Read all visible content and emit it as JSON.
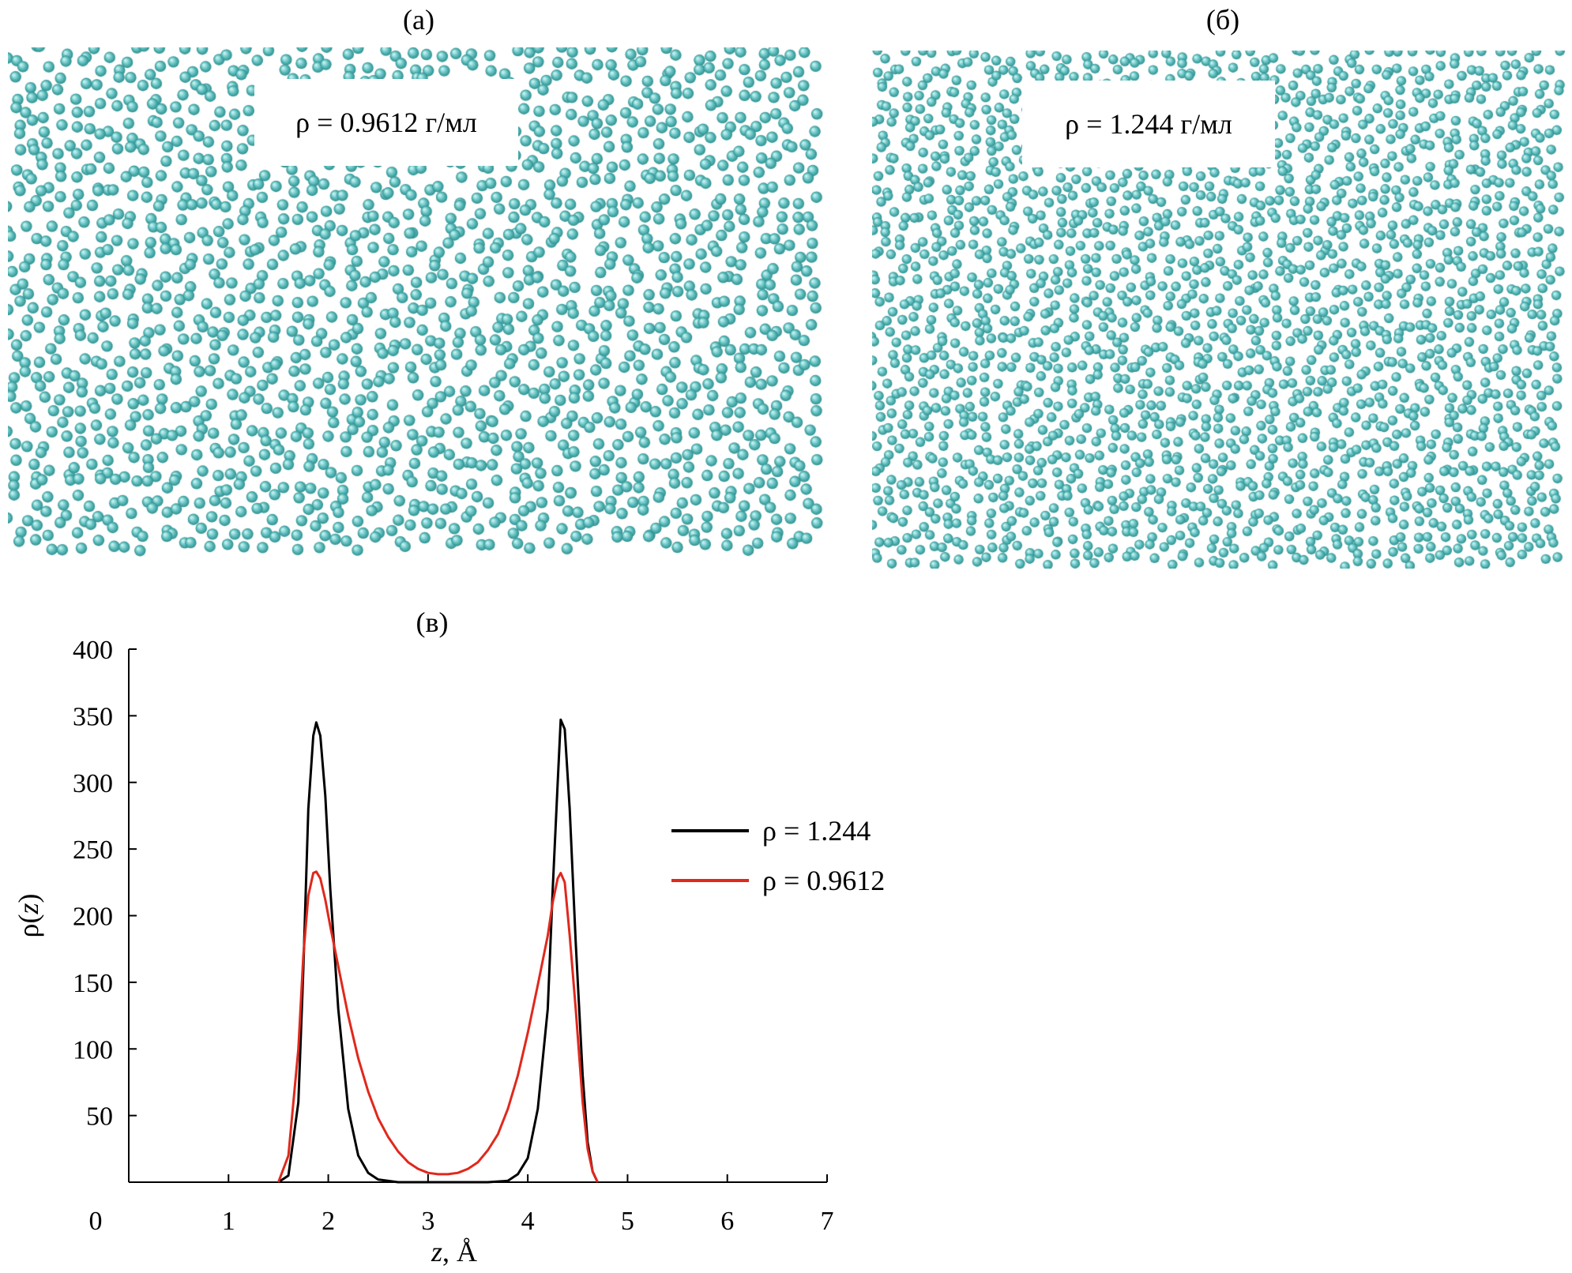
{
  "panels": {
    "a": {
      "label": "(а)",
      "density_label": "ρ = 0.9612 г/мл",
      "particle_color": "#5bbcbc"
    },
    "b": {
      "label": "(б)",
      "density_label": "ρ = 1.244 г/мл",
      "particle_color": "#5bbcbc"
    },
    "c": {
      "label": "(в)"
    }
  },
  "chart_data": {
    "type": "line",
    "xlabel_italic": "z",
    "xlabel_rest": ", Å",
    "ylabel_prefix": "ρ(",
    "ylabel_italic": "z",
    "ylabel_suffix": ")",
    "xlim": [
      0,
      7
    ],
    "ylim": [
      0,
      400
    ],
    "xticks": [
      "0",
      "1",
      "2",
      "3",
      "4",
      "5",
      "6",
      "7"
    ],
    "yticks": [
      "50",
      "100",
      "150",
      "200",
      "250",
      "300",
      "350",
      "400"
    ],
    "legend_position": "right",
    "series": [
      {
        "name": "ρ = 1.244",
        "color": "#000000",
        "x": [
          1.5,
          1.6,
          1.7,
          1.75,
          1.8,
          1.85,
          1.88,
          1.92,
          1.97,
          2.02,
          2.1,
          2.2,
          2.3,
          2.4,
          2.5,
          2.7,
          3.0,
          3.3,
          3.6,
          3.8,
          3.9,
          4.0,
          4.1,
          4.2,
          4.25,
          4.3,
          4.33,
          4.37,
          4.42,
          4.48,
          4.55,
          4.6,
          4.65,
          4.7
        ],
        "y": [
          0,
          5,
          60,
          160,
          280,
          335,
          345,
          335,
          290,
          220,
          130,
          55,
          20,
          7,
          2,
          0,
          0,
          0,
          0,
          1,
          6,
          18,
          55,
          130,
          220,
          300,
          347,
          340,
          280,
          180,
          80,
          30,
          8,
          0
        ]
      },
      {
        "name": "ρ = 0.9612",
        "color": "#e0281c",
        "x": [
          1.5,
          1.6,
          1.7,
          1.75,
          1.8,
          1.85,
          1.88,
          1.92,
          1.97,
          2.02,
          2.1,
          2.2,
          2.3,
          2.4,
          2.5,
          2.6,
          2.7,
          2.8,
          2.9,
          3.0,
          3.1,
          3.2,
          3.3,
          3.4,
          3.5,
          3.6,
          3.7,
          3.8,
          3.9,
          4.0,
          4.1,
          4.2,
          4.25,
          4.3,
          4.33,
          4.37,
          4.42,
          4.48,
          4.55,
          4.6,
          4.65,
          4.7
        ],
        "y": [
          0,
          20,
          100,
          170,
          215,
          232,
          233,
          228,
          212,
          192,
          162,
          125,
          93,
          68,
          48,
          34,
          23,
          15,
          10,
          7,
          6,
          6,
          7,
          10,
          15,
          24,
          36,
          55,
          80,
          112,
          148,
          185,
          210,
          228,
          232,
          225,
          185,
          130,
          60,
          25,
          8,
          0
        ]
      }
    ]
  }
}
